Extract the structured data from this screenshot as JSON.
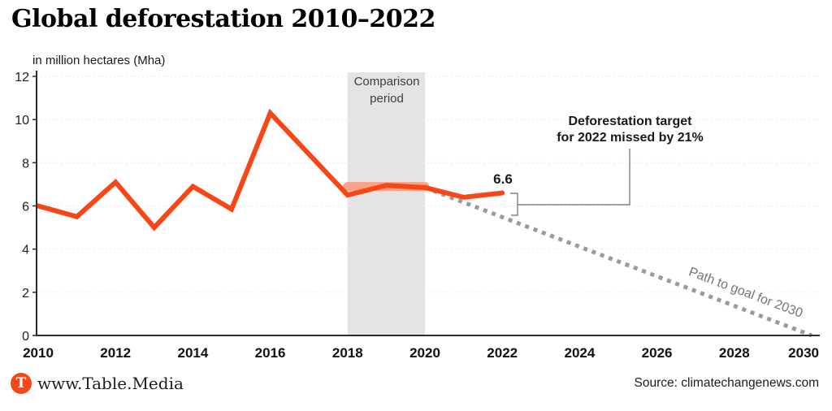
{
  "header": {
    "title": "Global deforestation 2010–2022"
  },
  "chart_data": {
    "type": "line",
    "title": "Global deforestation 2010–2022",
    "unit_label": "in million hectares (Mha)",
    "xlabel": "",
    "ylabel": "million hectares (Mha)",
    "xlim": [
      2010,
      2030
    ],
    "ylim": [
      0,
      12
    ],
    "x_ticks": [
      2010,
      2012,
      2014,
      2016,
      2018,
      2020,
      2022,
      2024,
      2026,
      2028,
      2030
    ],
    "y_ticks": [
      0,
      2,
      4,
      6,
      8,
      10,
      12
    ],
    "grid": "horizontal-dashed",
    "legend": "none",
    "series": [
      {
        "name": "Comparison period baseline (2018–2020 average)",
        "data_name": "baseline-segment",
        "x": [
          2018,
          2020
        ],
        "values": [
          6.9,
          6.9
        ],
        "color": "#f8a287",
        "width": 11,
        "cap": "round"
      },
      {
        "name": "Path to goal for 2030 (target path)",
        "data_name": "target-path-dotted-line",
        "x": [
          2020,
          2030
        ],
        "values": [
          6.85,
          0
        ],
        "color": "#9a9a9a",
        "width": 5,
        "dash": "5 6",
        "cap": "butt"
      },
      {
        "name": "Global deforestation (Mha)",
        "data_name": "deforestation-line",
        "x": [
          2010,
          2011,
          2012,
          2013,
          2014,
          2015,
          2016,
          2017,
          2018,
          2019,
          2020,
          2021,
          2022
        ],
        "values": [
          6.0,
          5.5,
          7.1,
          5.0,
          6.9,
          5.85,
          10.3,
          8.4,
          6.5,
          6.95,
          6.85,
          6.4,
          6.6
        ],
        "color": "#f84716",
        "width": 6,
        "cap": "round"
      }
    ],
    "annotations": {
      "comparison_band": {
        "label": "Comparison\nperiod",
        "x_from": 2018,
        "x_to": 2020,
        "fill": "#e4e4e4"
      },
      "value_label_2022": "6.6",
      "target_note": "Deforestation target\nfor 2022 missed by 21%",
      "path_label": "Path to goal for 2030"
    }
  },
  "colors": {
    "accent_orange": "#f84716",
    "baseline_salmon": "#f8a287",
    "band_gray": "#e4e4e4",
    "dotted_gray": "#9a9a9a",
    "axis_dark": "#2b2b2b",
    "callout_line": "#6a6a6a"
  },
  "footer": {
    "logo_letter": "T",
    "site": "www.Table.Media",
    "source": "Source: climatechangenews.com"
  }
}
